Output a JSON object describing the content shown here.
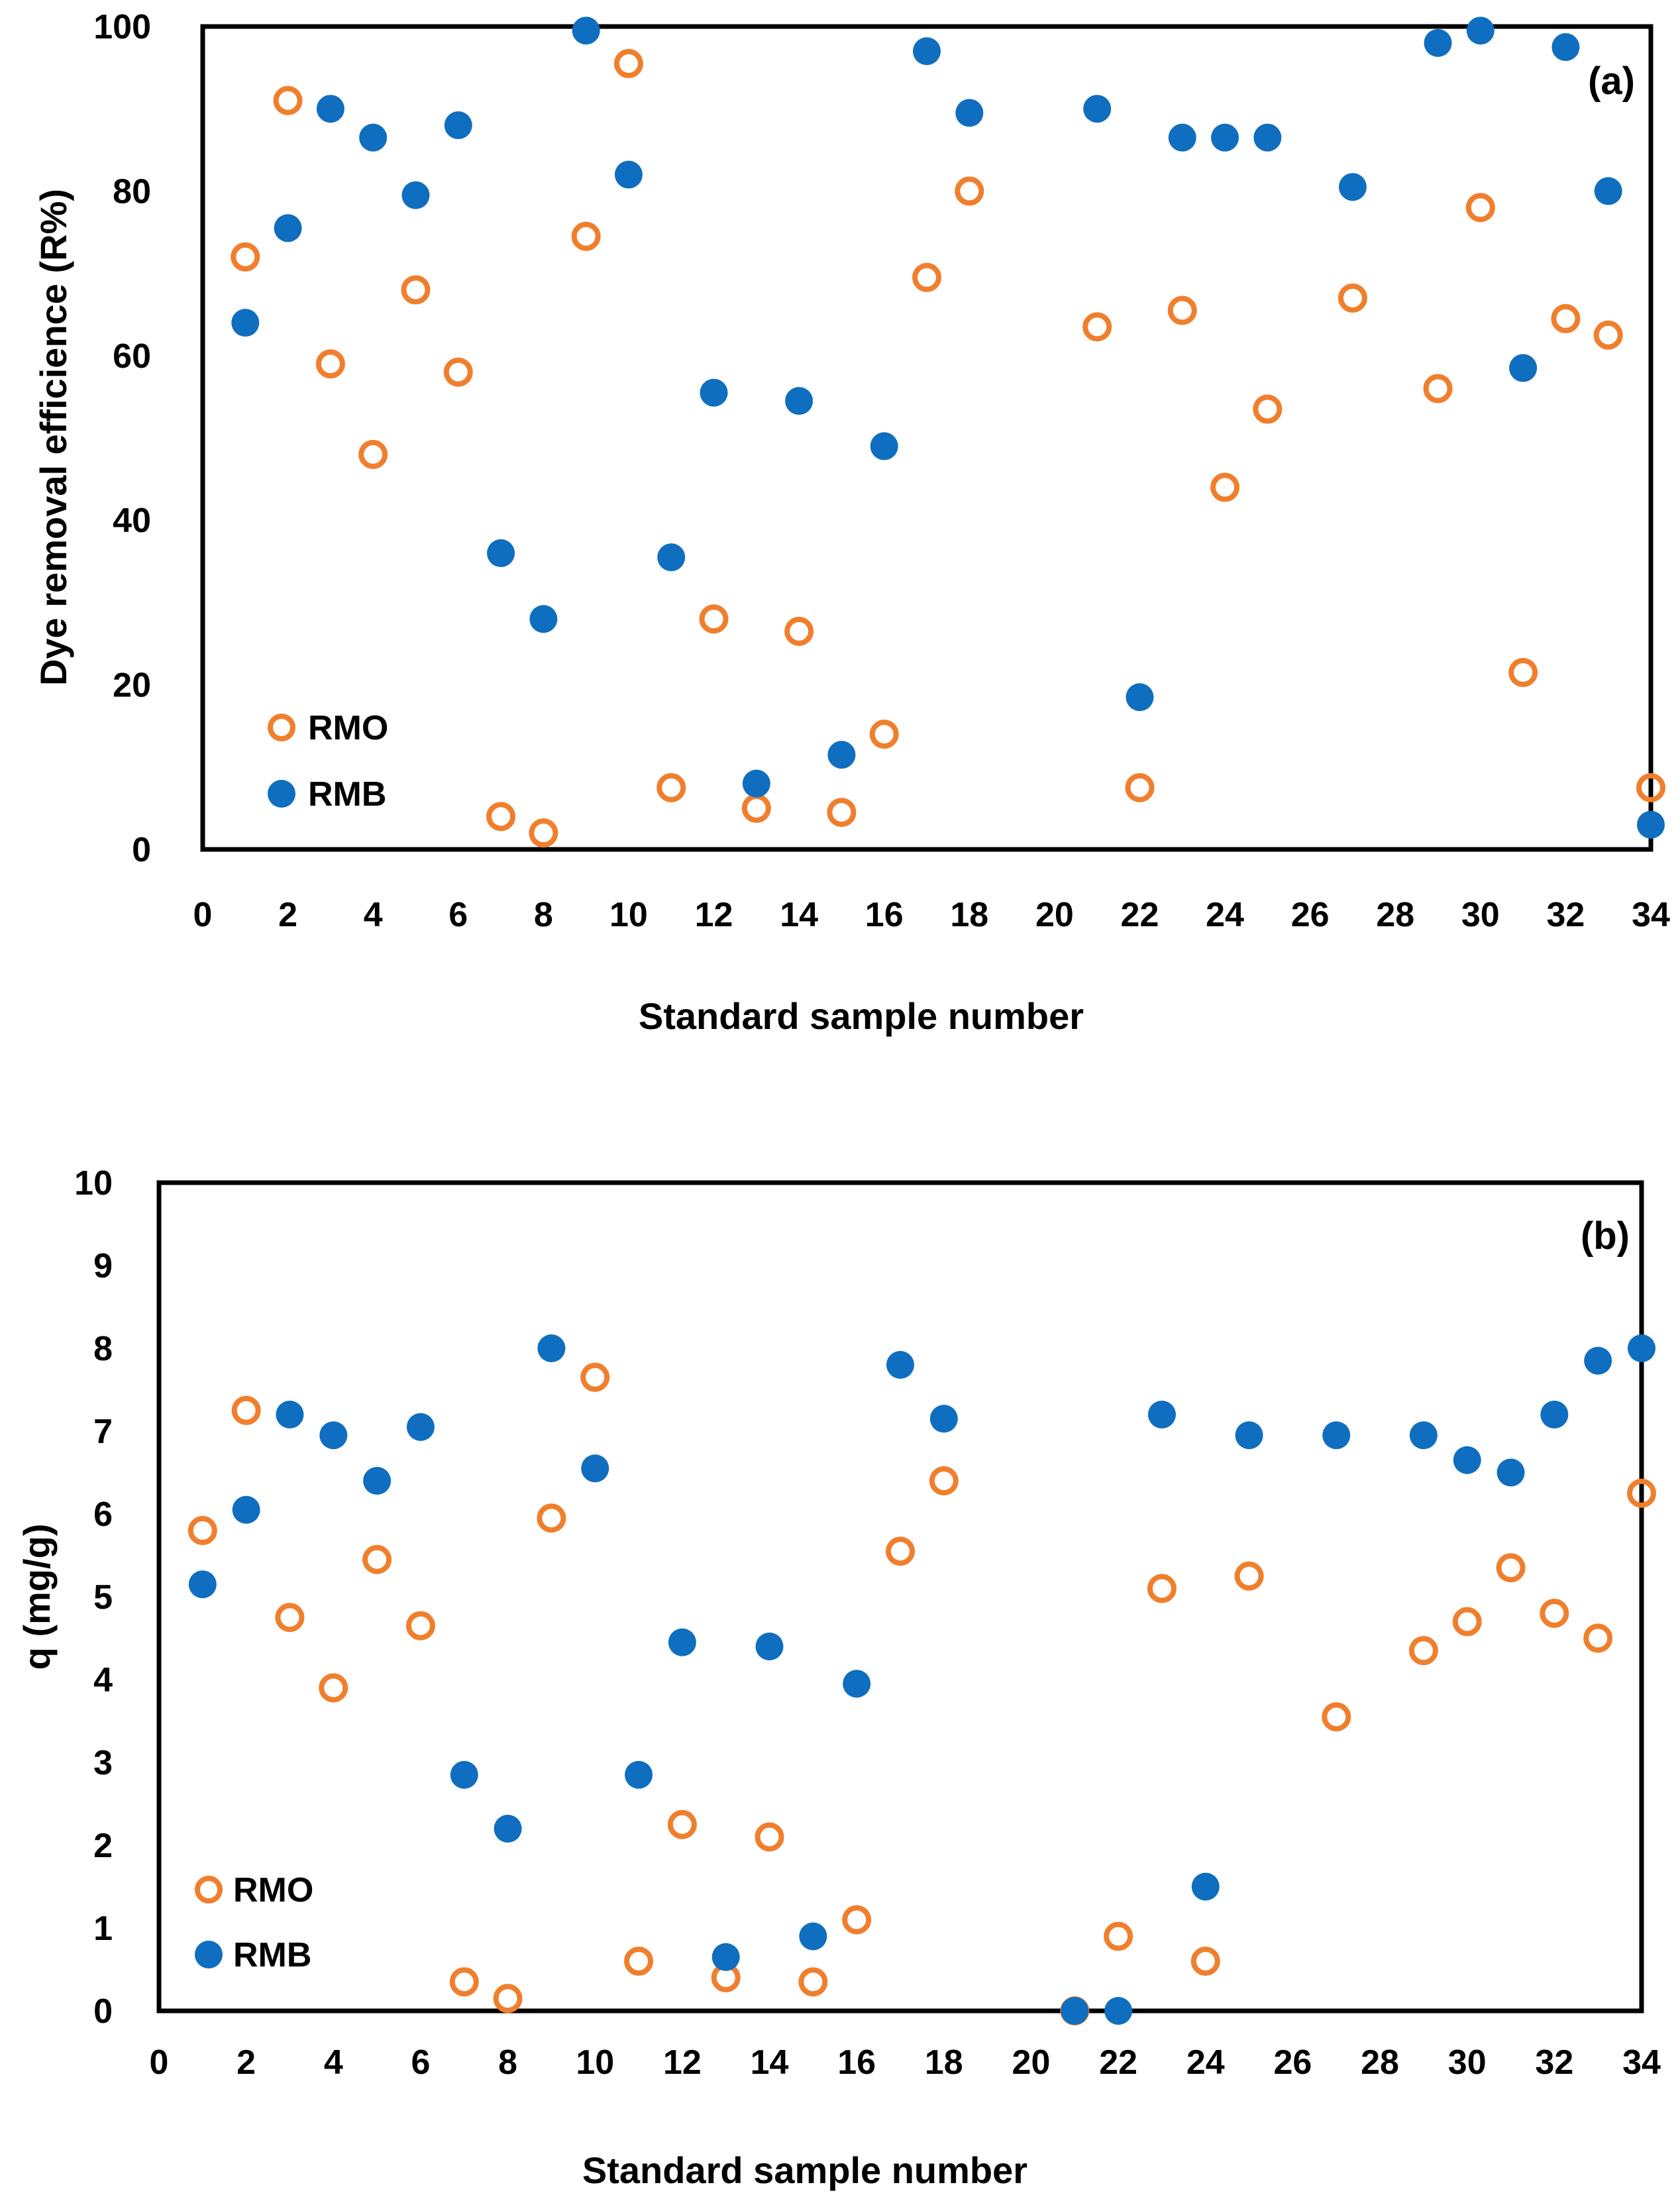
{
  "colors": {
    "rmo": "#F07F2D",
    "rmb": "#0F6EBF",
    "axis": "#000000"
  },
  "chart_data": [
    {
      "type": "scatter",
      "panel_label": "(a)",
      "xlabel": "Standard sample number",
      "ylabel": "Dye removal efficience (R%)",
      "xlim": [
        0,
        34
      ],
      "ylim": [
        0,
        100
      ],
      "xticks": [
        0,
        2,
        4,
        6,
        8,
        10,
        12,
        14,
        16,
        18,
        20,
        22,
        24,
        26,
        28,
        30,
        32,
        34
      ],
      "yticks": [
        0,
        20,
        40,
        60,
        80,
        100
      ],
      "legend_position": "bottom-left",
      "series": [
        {
          "name": "RMO",
          "marker": "open-circle",
          "x": [
            1,
            2,
            3,
            4,
            5,
            6,
            7,
            8,
            9,
            10,
            11,
            12,
            13,
            14,
            15,
            16,
            17,
            18,
            21,
            22,
            23,
            24,
            25,
            27,
            29,
            30,
            31,
            32,
            33,
            34
          ],
          "y": [
            72,
            91,
            59,
            48,
            68,
            58,
            4,
            2,
            74.5,
            95.5,
            7.5,
            28,
            5,
            26.5,
            4.5,
            14,
            69.5,
            80,
            63.5,
            7.5,
            65.5,
            44,
            53.5,
            67,
            56,
            78,
            21.5,
            64.5,
            62.5,
            7.5
          ]
        },
        {
          "name": "RMB",
          "marker": "filled-circle",
          "x": [
            1,
            2,
            3,
            4,
            5,
            6,
            7,
            8,
            9,
            10,
            11,
            12,
            13,
            14,
            15,
            16,
            17,
            18,
            21,
            22,
            23,
            24,
            25,
            27,
            29,
            30,
            31,
            32,
            33,
            34
          ],
          "y": [
            64,
            75.5,
            90,
            86.5,
            79.5,
            88,
            36,
            28,
            99.5,
            82,
            35.5,
            55.5,
            8,
            54.5,
            11.5,
            49,
            97,
            89.5,
            90,
            18.5,
            86.5,
            86.5,
            86.5,
            80.5,
            98,
            99.5,
            58.5,
            97.5,
            80,
            3
          ]
        }
      ]
    },
    {
      "type": "scatter",
      "panel_label": "(b)",
      "xlabel": "Standard sample number",
      "ylabel": "q (mg/g)",
      "xlim": [
        0,
        34
      ],
      "ylim": [
        0,
        10
      ],
      "xticks": [
        0,
        2,
        4,
        6,
        8,
        10,
        12,
        14,
        16,
        18,
        20,
        22,
        24,
        26,
        28,
        30,
        32,
        34
      ],
      "yticks": [
        0,
        1,
        2,
        3,
        4,
        5,
        6,
        7,
        8,
        9,
        10
      ],
      "legend_position": "bottom-left",
      "series": [
        {
          "name": "RMO",
          "marker": "open-circle",
          "x": [
            1,
            2,
            3,
            4,
            5,
            6,
            7,
            8,
            9,
            10,
            11,
            12,
            13,
            14,
            15,
            16,
            17,
            18,
            21,
            22,
            23,
            24,
            25,
            27,
            29,
            30,
            31,
            32,
            33,
            34
          ],
          "y": [
            5.8,
            7.25,
            4.75,
            3.9,
            5.45,
            4.65,
            0.35,
            0.15,
            5.95,
            7.65,
            0.6,
            2.25,
            0.4,
            2.1,
            0.35,
            1.1,
            5.55,
            6.4,
            0,
            0.9,
            5.1,
            0.6,
            5.25,
            3.55,
            4.35,
            4.7,
            5.35,
            4.8,
            4.5,
            6.25
          ]
        },
        {
          "name": "RMB",
          "marker": "filled-circle",
          "x": [
            1,
            2,
            3,
            4,
            5,
            6,
            7,
            8,
            9,
            10,
            11,
            12,
            13,
            14,
            15,
            16,
            17,
            18,
            21,
            22,
            23,
            24,
            25,
            27,
            29,
            30,
            31,
            32,
            33,
            34
          ],
          "y": [
            5.15,
            6.05,
            7.2,
            6.95,
            6.4,
            7.05,
            2.85,
            2.2,
            8,
            6.55,
            2.85,
            4.45,
            0.65,
            4.4,
            0.9,
            3.95,
            7.8,
            7.15,
            0,
            0,
            7.2,
            1.5,
            6.95,
            6.95,
            6.95,
            6.65,
            6.5,
            7.2,
            7.85,
            8
          ]
        }
      ]
    }
  ]
}
